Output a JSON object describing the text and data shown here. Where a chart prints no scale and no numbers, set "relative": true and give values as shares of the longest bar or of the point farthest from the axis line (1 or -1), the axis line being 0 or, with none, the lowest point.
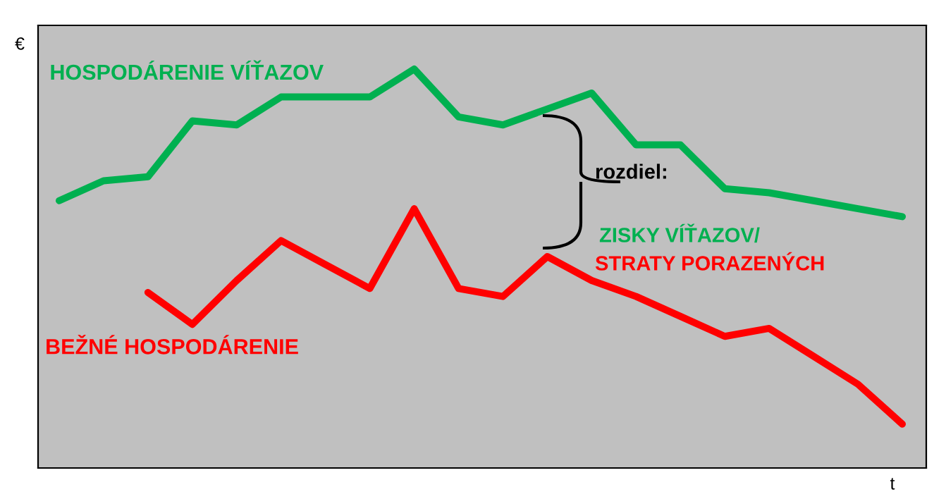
{
  "chart_data": {
    "type": "line",
    "relative": true,
    "ylabel": "€",
    "xlabel": "t",
    "categories": [
      null,
      null,
      null,
      null,
      null,
      null,
      null,
      null,
      null,
      null,
      null,
      null,
      null,
      null,
      null,
      null,
      null,
      null,
      null,
      null
    ],
    "series": [
      {
        "name": "HOSPODÁRENIE VÍŤAZOV",
        "color": "#00b050",
        "values": [
          0.67,
          0.72,
          0.73,
          0.87,
          0.86,
          0.93,
          0.93,
          0.93,
          1,
          0.88,
          0.86,
          0.9,
          0.94,
          0.81,
          0.81,
          0.7,
          0.69,
          0.67,
          0.65,
          0.63
        ]
      },
      {
        "name": "BEŽNÉ HOSPODÁRENIE",
        "color": "#ff0000",
        "values": [
          null,
          null,
          0.44,
          0.36,
          0.47,
          0.57,
          0.51,
          0.45,
          0.65,
          0.45,
          0.43,
          0.53,
          0.47,
          0.43,
          0.38,
          0.33,
          0.35,
          0.28,
          0.21,
          0.11
        ]
      }
    ],
    "annotations": [
      "rozdiel:",
      "ZISKY VÍŤAZOV/",
      "STRATY PORAZENÝCH"
    ]
  }
}
